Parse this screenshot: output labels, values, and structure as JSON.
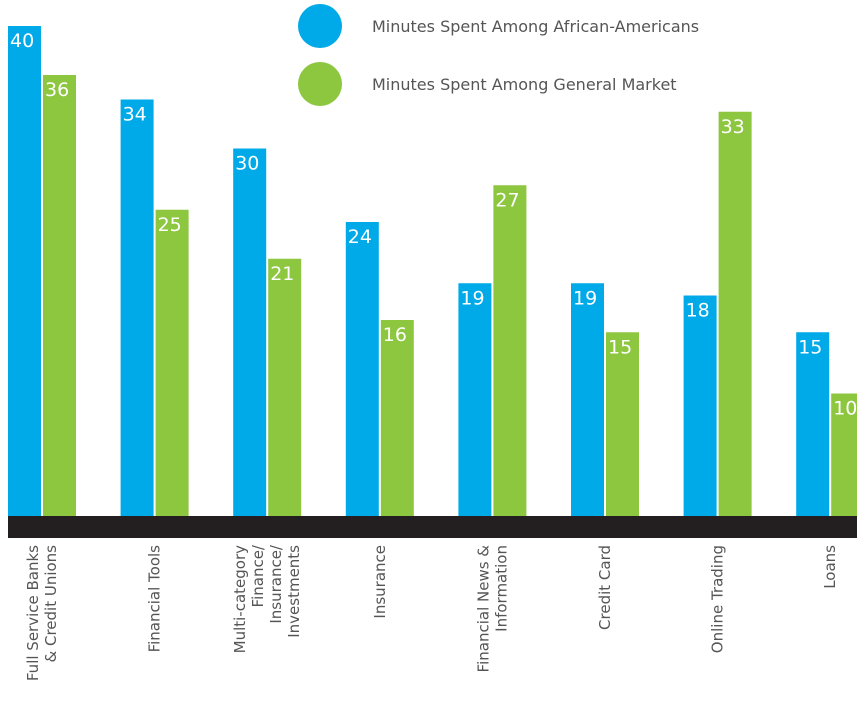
{
  "chart_data": {
    "type": "bar",
    "title": "",
    "xlabel": "",
    "ylabel": "",
    "categories": [
      [
        "Full Service Banks",
        "& Credit Unions"
      ],
      [
        "Financial Tools"
      ],
      [
        "Multi-category",
        "Finance/",
        "Insurance/",
        "Investments"
      ],
      [
        "Insurance"
      ],
      [
        "Financial News &",
        "Information"
      ],
      [
        "Credit Card"
      ],
      [
        "Online Trading"
      ],
      [
        "Loans"
      ]
    ],
    "series": [
      {
        "name": "Minutes Spent Among African-Americans",
        "values": [
          40,
          34,
          30,
          24,
          19,
          19,
          18,
          15
        ],
        "color": "#00a9e8"
      },
      {
        "name": "Minutes Spent Among General Market",
        "values": [
          36,
          25,
          21,
          16,
          27,
          15,
          33,
          10
        ],
        "color": "#8dc63f"
      }
    ],
    "ylim": [
      0,
      40
    ],
    "grid": false,
    "legend": "top-right",
    "baseline_color": "#231f20"
  }
}
